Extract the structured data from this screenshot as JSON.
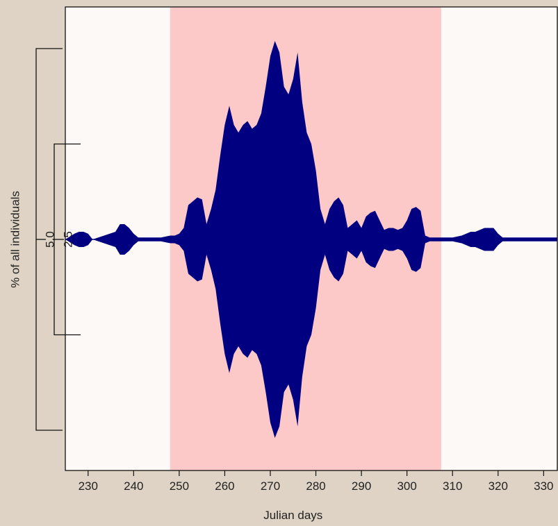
{
  "chart_data": {
    "type": "area",
    "style": "symmetric-kite",
    "title": "",
    "xlabel": "Julian days",
    "ylabel": "% of all individuals",
    "xlim": [
      225,
      333
    ],
    "x_ticks": [
      230,
      240,
      250,
      260,
      270,
      280,
      290,
      300,
      310,
      320,
      330
    ],
    "scale_bars": [
      {
        "label": "5.0",
        "value": 5.0
      },
      {
        "label": "2.5",
        "value": 2.5
      }
    ],
    "shaded_period": {
      "from": 248,
      "to": 307.5
    },
    "colors": {
      "fill": "#000080",
      "shade": "#fcc8c8",
      "plot_background": "#fdf9f6",
      "page_background": "#dfd3c5"
    },
    "series": [
      {
        "x": [
          225,
          227,
          228,
          229,
          230,
          231,
          236,
          237,
          238,
          239,
          240,
          241,
          246,
          248,
          249,
          250,
          251,
          252,
          253,
          254,
          255,
          256,
          257,
          258,
          259,
          260,
          261,
          262,
          263,
          264,
          265,
          266,
          267,
          268,
          269,
          270,
          271,
          272,
          273,
          274,
          275,
          276,
          277,
          278,
          279,
          280,
          281,
          282,
          283,
          284,
          285,
          286,
          287,
          288,
          289,
          290,
          291,
          292,
          293,
          294,
          295,
          296,
          297,
          298,
          299,
          300,
          301,
          302,
          303,
          304,
          305,
          308,
          310,
          312,
          313,
          314,
          315,
          316,
          317,
          318,
          319,
          320,
          321,
          325,
          330,
          333
        ],
        "values": [
          0,
          0.15,
          0.2,
          0.2,
          0.15,
          0,
          0.2,
          0.4,
          0.4,
          0.3,
          0.15,
          0.05,
          0.05,
          0.1,
          0.1,
          0.15,
          0.3,
          0.9,
          1.0,
          1.1,
          1.05,
          0.4,
          0.8,
          1.3,
          2.2,
          3.0,
          3.5,
          3.0,
          2.8,
          3.0,
          3.1,
          2.9,
          3.0,
          3.3,
          4.0,
          4.8,
          5.2,
          4.9,
          4.0,
          3.8,
          4.2,
          4.9,
          3.6,
          2.8,
          2.5,
          1.8,
          0.8,
          0.4,
          0.8,
          1.0,
          1.1,
          0.9,
          0.3,
          0.4,
          0.5,
          0.3,
          0.6,
          0.7,
          0.75,
          0.5,
          0.25,
          0.3,
          0.3,
          0.25,
          0.3,
          0.5,
          0.8,
          0.85,
          0.75,
          0.1,
          0.05,
          0.05,
          0.05,
          0.1,
          0.15,
          0.2,
          0.2,
          0.25,
          0.3,
          0.3,
          0.3,
          0.15,
          0.05,
          0.05,
          0.05,
          0.05
        ]
      }
    ]
  }
}
